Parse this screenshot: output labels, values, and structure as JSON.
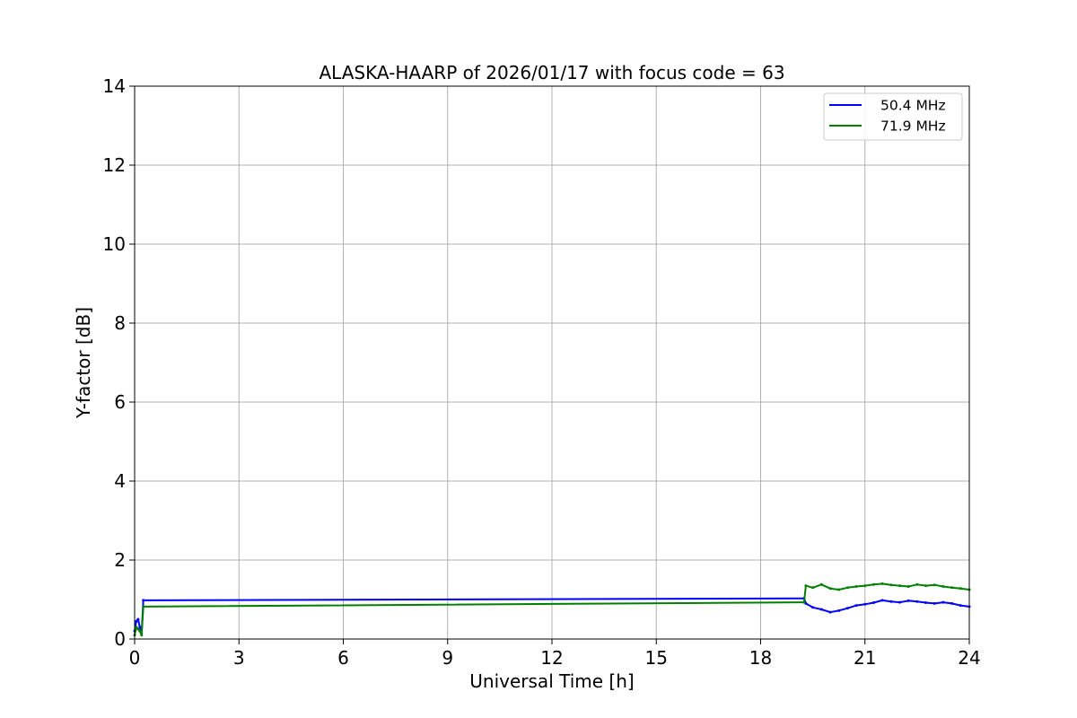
{
  "chart_data": {
    "type": "line",
    "title": "ALASKA-HAARP of 2026/01/17 with focus code = 63",
    "xlabel": "Universal Time [h]",
    "ylabel": "Y-factor [dB]",
    "xlim": [
      0,
      24
    ],
    "ylim": [
      0,
      14
    ],
    "xticks": [
      0,
      3,
      6,
      9,
      12,
      15,
      18,
      21,
      24
    ],
    "yticks": [
      0,
      2,
      4,
      6,
      8,
      10,
      12,
      14
    ],
    "grid": true,
    "legend_position": "top-right",
    "series": [
      {
        "name": "50.4 MHz",
        "color": "#0000ff",
        "x": [
          0.0,
          0.05,
          0.1,
          0.15,
          0.2,
          0.25,
          19.25,
          19.3,
          19.5,
          19.75,
          20.0,
          20.25,
          20.5,
          20.75,
          21.0,
          21.25,
          21.5,
          21.75,
          22.0,
          22.25,
          22.5,
          22.75,
          23.0,
          23.25,
          23.5,
          23.75,
          24.0
        ],
        "y": [
          0.2,
          0.45,
          0.5,
          0.3,
          0.15,
          0.98,
          1.03,
          0.9,
          0.8,
          0.75,
          0.68,
          0.72,
          0.78,
          0.85,
          0.88,
          0.92,
          0.98,
          0.95,
          0.93,
          0.97,
          0.95,
          0.92,
          0.9,
          0.93,
          0.9,
          0.85,
          0.82
        ]
      },
      {
        "name": "71.9 MHz",
        "color": "#008000",
        "x": [
          0.0,
          0.05,
          0.1,
          0.15,
          0.2,
          0.25,
          19.25,
          19.3,
          19.5,
          19.75,
          20.0,
          20.25,
          20.5,
          20.75,
          21.0,
          21.25,
          21.5,
          21.75,
          22.0,
          22.25,
          22.5,
          22.75,
          23.0,
          23.25,
          23.5,
          23.75,
          24.0
        ],
        "y": [
          0.1,
          0.3,
          0.25,
          0.2,
          0.1,
          0.82,
          0.93,
          1.35,
          1.3,
          1.38,
          1.28,
          1.25,
          1.3,
          1.33,
          1.35,
          1.38,
          1.4,
          1.37,
          1.35,
          1.33,
          1.38,
          1.35,
          1.37,
          1.33,
          1.3,
          1.28,
          1.25
        ]
      }
    ]
  }
}
